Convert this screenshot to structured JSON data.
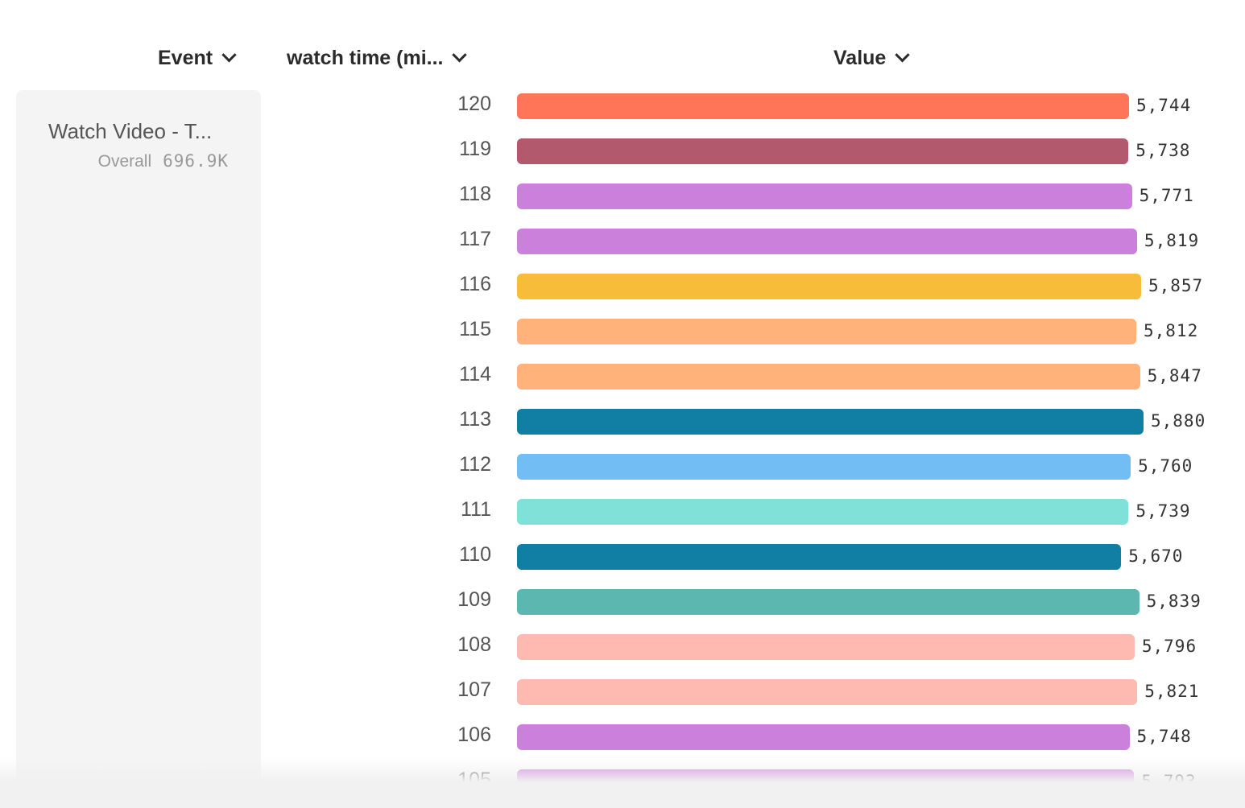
{
  "headers": {
    "event": "Event",
    "property": "watch time (mi...",
    "value": "Value"
  },
  "event_panel": {
    "name": "Watch Video - T...",
    "overall_label": "Overall",
    "overall_value": "696.9K"
  },
  "chart_data": {
    "type": "bar",
    "orientation": "horizontal",
    "categories": [
      "120",
      "119",
      "118",
      "117",
      "116",
      "115",
      "114",
      "113",
      "112",
      "111",
      "110",
      "109",
      "108",
      "107",
      "106",
      "105"
    ],
    "values": [
      5744,
      5738,
      5771,
      5819,
      5857,
      5812,
      5847,
      5880,
      5760,
      5739,
      5670,
      5839,
      5796,
      5821,
      5748,
      5793
    ],
    "labels": [
      "5,744",
      "5,738",
      "5,771",
      "5,819",
      "5,857",
      "5,812",
      "5,847",
      "5,880",
      "5,760",
      "5,739",
      "5,670",
      "5,839",
      "5,796",
      "5,821",
      "5,748",
      "5,793"
    ],
    "colors": [
      "#ff7557",
      "#b2596e",
      "#cb80dc",
      "#cb80dc",
      "#f8bc3b",
      "#ffb27a",
      "#ffb27a",
      "#117fa3",
      "#72bef4",
      "#80e1d9",
      "#117fa3",
      "#5bb7af",
      "#feb9b1",
      "#feb9b1",
      "#cb80dc",
      "#cb80dc"
    ],
    "xlim": [
      0,
      5880
    ],
    "grid": false
  }
}
